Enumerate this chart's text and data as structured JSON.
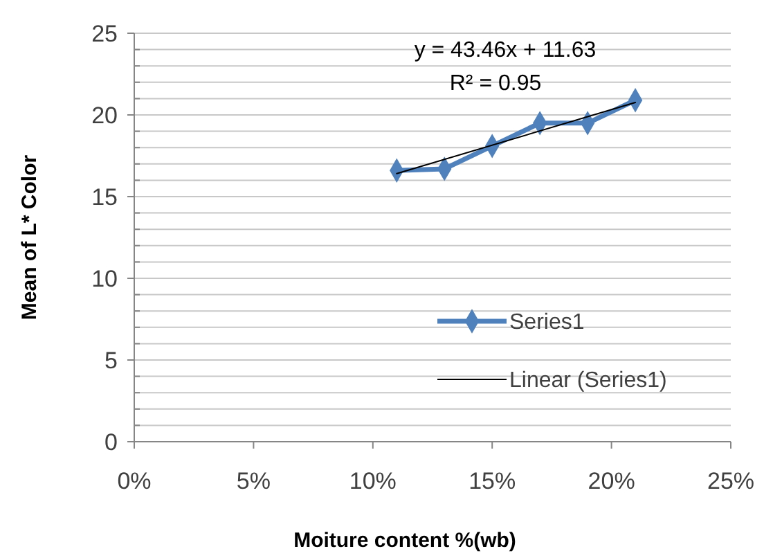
{
  "chart_data": {
    "type": "line",
    "xlabel": "Moiture content %(wb)",
    "ylabel": "Mean of L* Color",
    "xlim": [
      0,
      25
    ],
    "xticks": [
      {
        "value": 0,
        "label": "0%"
      },
      {
        "value": 5,
        "label": "5%"
      },
      {
        "value": 10,
        "label": "10%"
      },
      {
        "value": 15,
        "label": "15%"
      },
      {
        "value": 20,
        "label": "20%"
      },
      {
        "value": 25,
        "label": "25%"
      }
    ],
    "ylim": [
      0,
      25
    ],
    "yticks": [
      0,
      {
        "value": 1,
        "label": null
      },
      {
        "value": 2,
        "label": null
      },
      {
        "value": 3,
        "label": null
      },
      {
        "value": 4,
        "label": null
      },
      5,
      {
        "value": 6,
        "label": null
      },
      {
        "value": 7,
        "label": null
      },
      {
        "value": 8,
        "label": null
      },
      {
        "value": 9,
        "label": null
      },
      10,
      {
        "value": 11,
        "label": null
      },
      {
        "value": 12,
        "label": null
      },
      {
        "value": 13,
        "label": null
      },
      {
        "value": 14,
        "label": null
      },
      15,
      {
        "value": 16,
        "label": null
      },
      {
        "value": 17,
        "label": null
      },
      {
        "value": 18,
        "label": null
      },
      {
        "value": 19,
        "label": null
      },
      20,
      {
        "value": 21,
        "label": null
      },
      {
        "value": 22,
        "label": null
      },
      {
        "value": 23,
        "label": null
      },
      {
        "value": 24,
        "label": null
      },
      25
    ],
    "grid": "y",
    "legend": "right",
    "series": [
      {
        "name": "Series1",
        "color": "#4f81bd",
        "x": [
          11,
          13,
          15,
          17,
          19,
          21
        ],
        "values": [
          16.6,
          16.7,
          18.1,
          19.5,
          19.5,
          20.9
        ],
        "marker": "diamond",
        "line_style": "solid"
      },
      {
        "name": "Linear (Series1)",
        "color": "#000000",
        "x": [
          11,
          21
        ],
        "values": [
          16.41,
          20.76
        ],
        "marker": "none",
        "line_style": "solid"
      }
    ],
    "annotations": [
      "y = 43.46x + 11.63",
      "R² = 0.95"
    ]
  }
}
